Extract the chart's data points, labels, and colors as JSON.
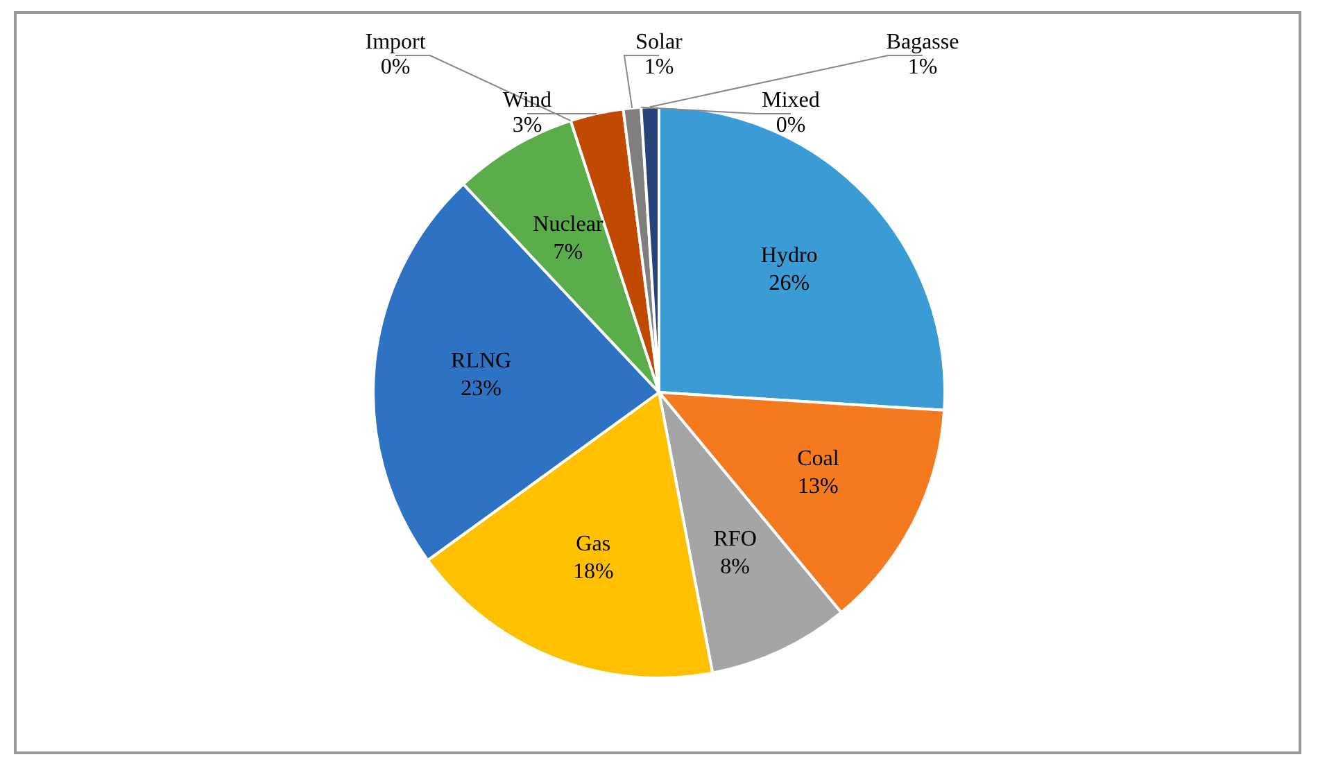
{
  "chart_data": {
    "type": "pie",
    "categories": [
      "Hydro",
      "Coal",
      "RFO",
      "Gas",
      "RLNG",
      "Nuclear",
      "Import",
      "Wind",
      "Solar",
      "Mixed",
      "Bagasse"
    ],
    "values": [
      26,
      13,
      8,
      18,
      23,
      7,
      0,
      3,
      1,
      0,
      1
    ],
    "colors": [
      "#3a9bd5",
      "#f47a20",
      "#a5a5a5",
      "#ffc000",
      "#2e72c4",
      "#5aad4a",
      "#9dc3e6",
      "#c04a00",
      "#7f7f7f",
      "#264478",
      "#264478"
    ],
    "value_labels": [
      "26%",
      "13%",
      "8%",
      "18%",
      "23%",
      "7%",
      "0%",
      "3%",
      "1%",
      "0%",
      "1%"
    ],
    "legend": false
  }
}
